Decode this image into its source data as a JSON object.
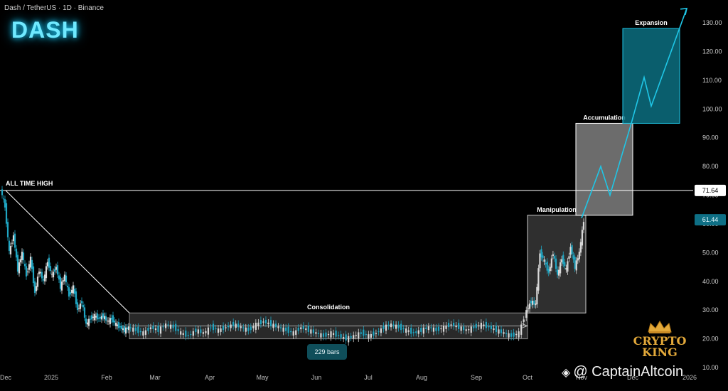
{
  "header": {
    "ticker": "Dash / TetherUS · 1D · Binance",
    "symbol": "DASH"
  },
  "brand": {
    "line1": "CRYPTO",
    "line2": "KING",
    "credit": "@ CaptainAltcoin"
  },
  "colors": {
    "accent": "#1fc6e6",
    "bullish": "#d9d9d9",
    "bearish": "#1fa5c2",
    "consolidation_fill": "#4a4a4a",
    "manipulation_fill": "#555555",
    "accumulation_fill": "#9a9a9a",
    "expansion_fill": "#0c6e80"
  },
  "chart_data": {
    "type": "line",
    "title": "",
    "xlabel": "",
    "ylabel": "",
    "ylim": [
      10,
      135
    ],
    "yticks": [
      "130.00",
      "120.00",
      "110.00",
      "100.00",
      "90.00",
      "80.00",
      "70.00",
      "60.00",
      "50.00",
      "40.00",
      "30.00",
      "20.00",
      "10.00"
    ],
    "xticks": [
      "Dec",
      "2025",
      "Feb",
      "Mar",
      "Apr",
      "May",
      "Jun",
      "Jul",
      "Aug",
      "Sep",
      "Oct",
      "Nov",
      "Dec",
      "2026"
    ],
    "price_labels": [
      {
        "label": "71.64",
        "value": 71.64,
        "style": "white"
      },
      {
        "label": "61.44",
        "value": 61.44,
        "style": "accent"
      }
    ],
    "all_time_high": {
      "label": "ALL TIME HIGH",
      "value": 71.64
    },
    "annotations": [
      {
        "label": "Consolidation",
        "low": 20,
        "high": 29,
        "from": "Feb",
        "to": "Oct"
      },
      {
        "label": "Manipulation",
        "low": 29,
        "high": 63,
        "from": "Oct",
        "to": "Nov"
      },
      {
        "label": "Accumulation",
        "low": 63,
        "high": 95,
        "from": "Nov",
        "to": "Dec"
      },
      {
        "label": "Expansion",
        "low": 95,
        "high": 128,
        "from": "Dec",
        "to": "2026"
      }
    ],
    "range_measure": {
      "label": "229 bars"
    },
    "projection": [
      62,
      80,
      70,
      95,
      111,
      101,
      135
    ],
    "series": [
      {
        "values": [
          72,
          66,
          50,
          56,
          44,
          50,
          42,
          48,
          36,
          44,
          40,
          47,
          42,
          45,
          38,
          42,
          35,
          38,
          30,
          33,
          25,
          27,
          28,
          27,
          28,
          26,
          27,
          25,
          24,
          23,
          24,
          23,
          22,
          24,
          23,
          25,
          24,
          22,
          21,
          23,
          22,
          24,
          23,
          24,
          25,
          24,
          23,
          25,
          26,
          25,
          24,
          23,
          22,
          24,
          23,
          22,
          21,
          22,
          21,
          20,
          21,
          22,
          21,
          22,
          24,
          25,
          24,
          23,
          22,
          23,
          24,
          23,
          24,
          25,
          24,
          23,
          24,
          25,
          24,
          23,
          22,
          21,
          22,
          30,
          33,
          32,
          50,
          47,
          43,
          50,
          42,
          48,
          44,
          52,
          45,
          50,
          61
        ]
      }
    ]
  }
}
